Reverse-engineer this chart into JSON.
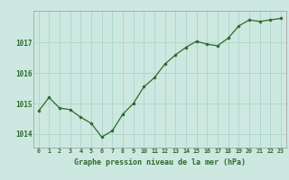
{
  "x": [
    0,
    1,
    2,
    3,
    4,
    5,
    6,
    7,
    8,
    9,
    10,
    11,
    12,
    13,
    14,
    15,
    16,
    17,
    18,
    19,
    20,
    21,
    22,
    23
  ],
  "y": [
    1014.75,
    1015.2,
    1014.85,
    1014.8,
    1014.55,
    1014.35,
    1013.9,
    1014.1,
    1014.65,
    1015.0,
    1015.55,
    1015.85,
    1016.3,
    1016.6,
    1016.85,
    1017.05,
    1016.95,
    1016.9,
    1017.15,
    1017.55,
    1017.75,
    1017.7,
    1017.75,
    1017.8
  ],
  "line_color": "#2d6a2d",
  "marker_color": "#2d6a2d",
  "bg_color": "#cde8e0",
  "grid_color": "#b0d8cc",
  "axis_label_color": "#2d6a2d",
  "xlabel": "Graphe pression niveau de la mer (hPa)",
  "yticks": [
    1014,
    1015,
    1016,
    1017
  ],
  "ylim": [
    1013.55,
    1018.05
  ],
  "xlim": [
    -0.5,
    23.5
  ]
}
